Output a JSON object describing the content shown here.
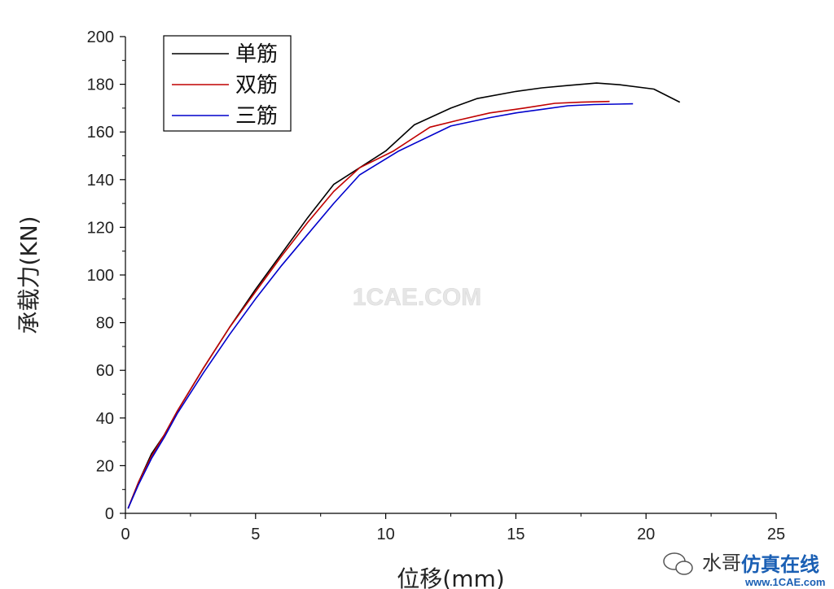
{
  "chart_data": {
    "type": "line",
    "title": "",
    "xlabel": "位移(mm)",
    "ylabel": "承载力(KN)",
    "xlim": [
      0,
      25
    ],
    "ylim": [
      0,
      200
    ],
    "xticks": [
      0,
      5,
      10,
      15,
      20,
      25
    ],
    "yticks": [
      0,
      20,
      40,
      60,
      80,
      100,
      120,
      140,
      160,
      180,
      200
    ],
    "grid": false,
    "legend_position": "top-left",
    "series": [
      {
        "name": "单筋",
        "color": "#000000",
        "x": [
          0.1,
          0.5,
          1.0,
          1.5,
          2.0,
          3.0,
          4.0,
          5.0,
          6.0,
          7.0,
          8.0,
          9.0,
          10.0,
          11.1,
          12.5,
          13.5,
          15.0,
          16.0,
          17.0,
          18.1,
          19.0,
          20.3,
          21.3
        ],
        "y": [
          2,
          13,
          25,
          33,
          43,
          61,
          78,
          94,
          109,
          124,
          138,
          145,
          152,
          163,
          170,
          174,
          177,
          178.5,
          179.5,
          180.5,
          179.8,
          178,
          172.5
        ]
      },
      {
        "name": "双筋",
        "color": "#c00000",
        "x": [
          0.1,
          0.5,
          1.0,
          1.5,
          2.0,
          3.0,
          4.0,
          5.0,
          6.0,
          7.0,
          8.0,
          9.0,
          10.3,
          11.7,
          12.8,
          14.0,
          15.3,
          16.5,
          17.5,
          18.6
        ],
        "y": [
          2,
          13,
          24,
          33,
          43,
          61,
          78,
          93,
          108,
          122,
          135,
          145,
          152,
          162,
          165,
          168,
          170,
          172,
          172.5,
          172.8
        ]
      },
      {
        "name": "三筋",
        "color": "#0000cc",
        "x": [
          0.1,
          0.5,
          1.0,
          1.5,
          2.0,
          3.0,
          4.0,
          5.0,
          6.0,
          7.0,
          8.0,
          9.0,
          10.5,
          12.5,
          14.0,
          15.0,
          16.0,
          17.0,
          18.0,
          19.5
        ],
        "y": [
          2,
          12,
          23,
          32,
          42,
          59,
          75,
          90,
          104,
          117,
          130,
          142,
          152,
          162.5,
          166,
          168,
          169.5,
          171,
          171.5,
          171.8
        ]
      }
    ]
  },
  "watermark": {
    "center": "1CAE.COM",
    "corner_text_1": "水哥",
    "corner_text_2": "仿真在线",
    "corner_site": "www.1CAE.com"
  }
}
